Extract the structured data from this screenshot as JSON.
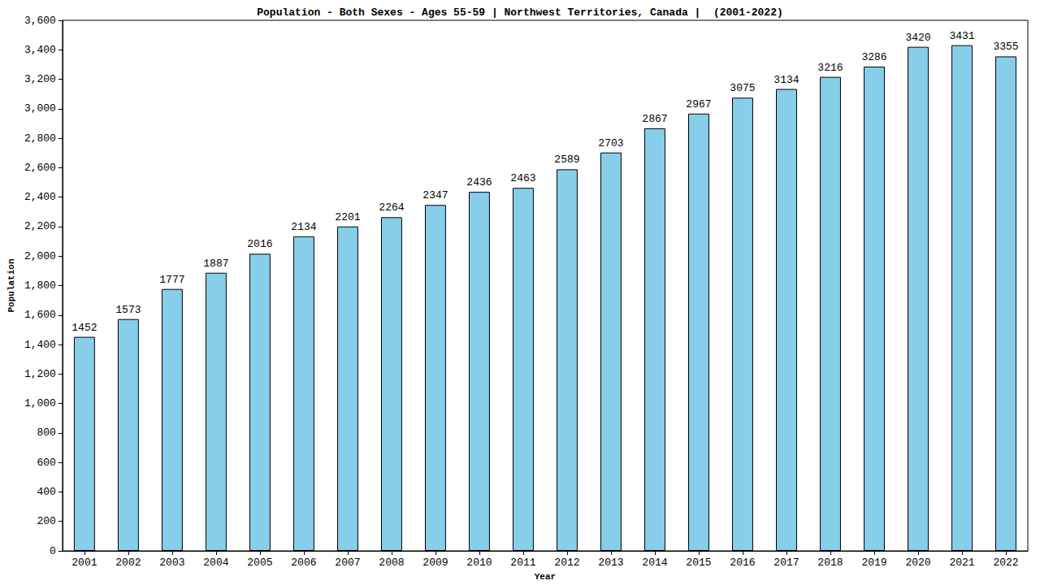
{
  "chart_data": {
    "type": "bar",
    "title": "Population - Both Sexes - Ages 55-59 | Northwest Territories, Canada |  (2001-2022)",
    "x_label": "Year",
    "y_label": "Population",
    "categories": [
      "2001",
      "2002",
      "2003",
      "2004",
      "2005",
      "2006",
      "2007",
      "2008",
      "2009",
      "2010",
      "2011",
      "2012",
      "2013",
      "2014",
      "2015",
      "2016",
      "2017",
      "2018",
      "2019",
      "2020",
      "2021",
      "2022"
    ],
    "values": [
      1452,
      1573,
      1777,
      1887,
      2016,
      2134,
      2201,
      2264,
      2347,
      2436,
      2463,
      2589,
      2703,
      2867,
      2967,
      3075,
      3134,
      3216,
      3286,
      3420,
      3431,
      3355
    ],
    "color": "#87ceeb",
    "ylim": [
      0,
      3600
    ],
    "yticks": [
      0,
      200,
      400,
      600,
      800,
      1000,
      1200,
      1400,
      1600,
      1800,
      2000,
      2200,
      2400,
      2600,
      2800,
      3000,
      3200,
      3400,
      3600
    ],
    "grid": false,
    "data_labels": true
  }
}
